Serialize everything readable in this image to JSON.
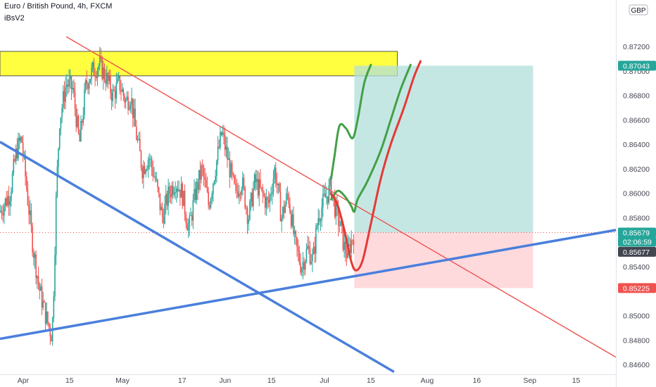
{
  "header": {
    "symbol_line": "Euro / British Pound, 4h, FXCM",
    "indicator": "iBsV2",
    "currency": "GBP"
  },
  "chart_data": {
    "type": "candlestick",
    "title": "Euro / British Pound, 4h, FXCM",
    "ylim": [
      0.8452,
      0.8758
    ],
    "y_ticks": [
      "0.87200",
      "0.87000",
      "0.86800",
      "0.86600",
      "0.86400",
      "0.86200",
      "0.86000",
      "0.85800",
      "0.85400",
      "0.85000",
      "0.84800",
      "0.84600"
    ],
    "x_ticks": [
      {
        "label": "Apr",
        "t": 4
      },
      {
        "label": "15",
        "t": 18
      },
      {
        "label": "May",
        "t": 34
      },
      {
        "label": "17",
        "t": 52
      },
      {
        "label": "Jun",
        "t": 65
      },
      {
        "label": "15",
        "t": 79
      },
      {
        "label": "Jul",
        "t": 95
      },
      {
        "label": "15",
        "t": 109
      },
      {
        "label": "Aug",
        "t": 126
      },
      {
        "label": "16",
        "t": 141
      },
      {
        "label": "Sep",
        "t": 157
      },
      {
        "label": "15",
        "t": 171
      }
    ],
    "xlim": [
      -3,
      183
    ],
    "price_labels": [
      {
        "value": "0.87043",
        "kind": "target",
        "color": "#26a69a"
      },
      {
        "value": "0.85679",
        "kind": "last",
        "color": "#26a69a"
      },
      {
        "value": "02:06:59",
        "kind": "countdown",
        "color": "#26a69a"
      },
      {
        "value": "0.85677",
        "kind": "marker",
        "color": "#434651"
      },
      {
        "value": "0.85225",
        "kind": "stop",
        "color": "#ef5350"
      }
    ],
    "price_path": [
      [
        -3,
        0.8585
      ],
      [
        0,
        0.86
      ],
      [
        2,
        0.8635
      ],
      [
        3.5,
        0.8645
      ],
      [
        5,
        0.8605
      ],
      [
        7,
        0.8555
      ],
      [
        9,
        0.852
      ],
      [
        11,
        0.8498
      ],
      [
        12.5,
        0.8485
      ],
      [
        13,
        0.85
      ],
      [
        14,
        0.86
      ],
      [
        15,
        0.866
      ],
      [
        17,
        0.869
      ],
      [
        19,
        0.8685
      ],
      [
        21,
        0.864
      ],
      [
        23,
        0.869
      ],
      [
        25,
        0.87
      ],
      [
        27,
        0.8705
      ],
      [
        29,
        0.8695
      ],
      [
        31,
        0.868
      ],
      [
        33,
        0.869
      ],
      [
        35,
        0.8675
      ],
      [
        36.5,
        0.868
      ],
      [
        38,
        0.865
      ],
      [
        40,
        0.862
      ],
      [
        42,
        0.863
      ],
      [
        44,
        0.861
      ],
      [
        46,
        0.858
      ],
      [
        48,
        0.86
      ],
      [
        50,
        0.861
      ],
      [
        52,
        0.86
      ],
      [
        54,
        0.857
      ],
      [
        56,
        0.86
      ],
      [
        58,
        0.862
      ],
      [
        60,
        0.859
      ],
      [
        62,
        0.862
      ],
      [
        64,
        0.865
      ],
      [
        66,
        0.8625
      ],
      [
        68,
        0.86
      ],
      [
        70,
        0.861
      ],
      [
        72,
        0.858
      ],
      [
        74,
        0.861
      ],
      [
        76,
        0.86
      ],
      [
        78,
        0.859
      ],
      [
        80,
        0.862
      ],
      [
        82,
        0.858
      ],
      [
        84,
        0.86
      ],
      [
        86,
        0.856
      ],
      [
        88,
        0.854
      ],
      [
        90,
        0.8555
      ],
      [
        91.5,
        0.8545
      ],
      [
        93,
        0.858
      ],
      [
        95,
        0.8595
      ],
      [
        97,
        0.8605
      ],
      [
        98,
        0.859
      ],
      [
        100,
        0.857
      ],
      [
        101,
        0.8555
      ],
      [
        102,
        0.855
      ],
      [
        103,
        0.856
      ],
      [
        104,
        0.8568
      ]
    ],
    "annotations": {
      "resistance_zone": {
        "t0": -3,
        "t1": 117,
        "y0": 0.8696,
        "y1": 0.8716,
        "color": "#ffff00"
      },
      "target_box": {
        "t0": 104,
        "t1": 158,
        "y0": 0.85679,
        "y1": 0.87043,
        "color": "#b2dfdb"
      },
      "stop_box": {
        "t0": 104,
        "t1": 158,
        "y0": 0.85225,
        "y1": 0.85679,
        "color": "#ffcdd2"
      },
      "trendlines": [
        {
          "color": "#ef5350",
          "width": 1.4,
          "points": [
            [
              17,
              0.8728
            ],
            [
              183,
              0.8466
            ]
          ]
        },
        {
          "color": "#4a7fdc",
          "width": 3.5,
          "points": [
            [
              -3,
              0.8642
            ],
            [
              116,
              0.8454
            ]
          ]
        },
        {
          "color": "#4a7fdc",
          "width": 3.5,
          "points": [
            [
              -3,
              0.8481
            ],
            [
              183,
              0.857
            ]
          ]
        }
      ],
      "projections": [
        {
          "color": "#43a047",
          "width": 3,
          "points": [
            [
              97,
              0.8612
            ],
            [
              98,
              0.863
            ],
            [
              99.5,
              0.8655
            ],
            [
              101.5,
              0.8653
            ],
            [
              103.5,
              0.8645
            ],
            [
              105,
              0.866
            ],
            [
              107,
              0.869
            ],
            [
              109,
              0.8705
            ]
          ]
        },
        {
          "color": "#43a047",
          "width": 3,
          "points": [
            [
              97,
              0.8595
            ],
            [
              99,
              0.8602
            ],
            [
              101,
              0.8598
            ],
            [
              103,
              0.859
            ],
            [
              104,
              0.8585
            ],
            [
              105,
              0.8595
            ],
            [
              108,
              0.861
            ],
            [
              112,
              0.8635
            ],
            [
              115,
              0.866
            ],
            [
              118,
              0.8685
            ],
            [
              121,
              0.8705
            ]
          ]
        },
        {
          "color": "#e53935",
          "width": 3,
          "points": [
            [
              97,
              0.86
            ],
            [
              99,
              0.859
            ],
            [
              101,
              0.857
            ],
            [
              103,
              0.8545
            ],
            [
              104.5,
              0.8537
            ],
            [
              106.5,
              0.8545
            ],
            [
              109,
              0.8575
            ],
            [
              112,
              0.8612
            ],
            [
              115,
              0.864
            ],
            [
              119,
              0.867
            ],
            [
              122,
              0.8695
            ],
            [
              124,
              0.8708
            ]
          ]
        }
      ]
    }
  }
}
